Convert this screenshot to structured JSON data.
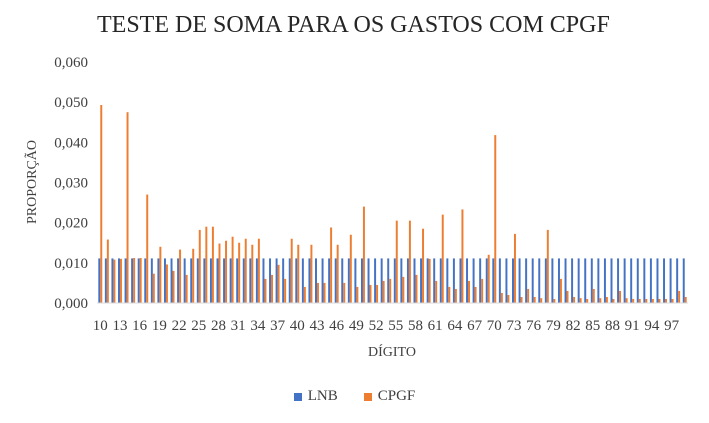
{
  "chart_data": {
    "type": "bar",
    "title": "TESTE DE SOMA PARA OS GASTOS COM CPGF",
    "xlabel": "DÍGITO",
    "ylabel": "PROPORÇÃO",
    "ylim": [
      0,
      0.06
    ],
    "yticks": [
      "0,000",
      "0,010",
      "0,020",
      "0,030",
      "0,040",
      "0,050",
      "0,060"
    ],
    "grid": false,
    "legend_position": "bottom",
    "categories": [
      10,
      11,
      12,
      13,
      14,
      15,
      16,
      17,
      18,
      19,
      20,
      21,
      22,
      23,
      24,
      25,
      26,
      27,
      28,
      29,
      30,
      31,
      32,
      33,
      34,
      35,
      36,
      37,
      38,
      39,
      40,
      41,
      42,
      43,
      44,
      45,
      46,
      47,
      48,
      49,
      50,
      51,
      52,
      53,
      54,
      55,
      56,
      57,
      58,
      59,
      60,
      61,
      62,
      63,
      64,
      65,
      66,
      67,
      68,
      69,
      70,
      71,
      72,
      73,
      74,
      75,
      76,
      77,
      78,
      79,
      80,
      81,
      82,
      83,
      84,
      85,
      86,
      87,
      88,
      89,
      90,
      91,
      92,
      93,
      94,
      95,
      96,
      97,
      98,
      99
    ],
    "tick_labels": [
      "10",
      "13",
      "16",
      "19",
      "22",
      "25",
      "28",
      "31",
      "34",
      "37",
      "40",
      "43",
      "46",
      "49",
      "52",
      "55",
      "58",
      "61",
      "64",
      "67",
      "70",
      "73",
      "76",
      "79",
      "82",
      "85",
      "88",
      "91",
      "94",
      "97"
    ],
    "series": [
      {
        "name": "LNB",
        "color": "#4472c4",
        "values": [
          0.0111,
          0.0111,
          0.0111,
          0.0111,
          0.0111,
          0.0111,
          0.0111,
          0.0111,
          0.0111,
          0.0111,
          0.0111,
          0.0111,
          0.0111,
          0.0111,
          0.0111,
          0.0111,
          0.0111,
          0.0111,
          0.0111,
          0.0111,
          0.0111,
          0.0111,
          0.0111,
          0.0111,
          0.0111,
          0.0111,
          0.0111,
          0.0111,
          0.0111,
          0.0111,
          0.0111,
          0.0111,
          0.0111,
          0.0111,
          0.0111,
          0.0111,
          0.0111,
          0.0111,
          0.0111,
          0.0111,
          0.0111,
          0.0111,
          0.0111,
          0.0111,
          0.0111,
          0.0111,
          0.0111,
          0.0111,
          0.0111,
          0.0111,
          0.0111,
          0.0111,
          0.0111,
          0.0111,
          0.0111,
          0.0111,
          0.0111,
          0.0111,
          0.0111,
          0.0111,
          0.0111,
          0.0111,
          0.0111,
          0.0111,
          0.0111,
          0.0111,
          0.0111,
          0.0111,
          0.0111,
          0.0111,
          0.0111,
          0.0111,
          0.0111,
          0.0111,
          0.0111,
          0.0111,
          0.0111,
          0.0111,
          0.0111,
          0.0111,
          0.0111,
          0.0111,
          0.0111,
          0.0111,
          0.0111,
          0.0111,
          0.0111,
          0.0111,
          0.0111,
          0.0111
        ]
      },
      {
        "name": "CPGF",
        "color": "#ed7d31",
        "values": [
          0.0493,
          0.0158,
          0.0108,
          0.011,
          0.0475,
          0.0112,
          0.0112,
          0.027,
          0.0073,
          0.014,
          0.0096,
          0.008,
          0.0133,
          0.007,
          0.0135,
          0.0182,
          0.019,
          0.019,
          0.0148,
          0.0155,
          0.0165,
          0.015,
          0.016,
          0.0145,
          0.016,
          0.006,
          0.007,
          0.0095,
          0.006,
          0.016,
          0.0145,
          0.004,
          0.0145,
          0.005,
          0.005,
          0.0188,
          0.0145,
          0.005,
          0.017,
          0.004,
          0.024,
          0.0045,
          0.0045,
          0.0055,
          0.006,
          0.0205,
          0.0065,
          0.0205,
          0.007,
          0.0185,
          0.011,
          0.0055,
          0.022,
          0.004,
          0.0035,
          0.0233,
          0.0055,
          0.004,
          0.006,
          0.012,
          0.0418,
          0.0025,
          0.002,
          0.0172,
          0.0015,
          0.0035,
          0.0015,
          0.0012,
          0.0182,
          0.001,
          0.006,
          0.003,
          0.0015,
          0.0012,
          0.001,
          0.0035,
          0.0012,
          0.0015,
          0.001,
          0.003,
          0.0012,
          0.001,
          0.001,
          0.001,
          0.001,
          0.001,
          0.001,
          0.001,
          0.003,
          0.0015
        ]
      }
    ]
  }
}
